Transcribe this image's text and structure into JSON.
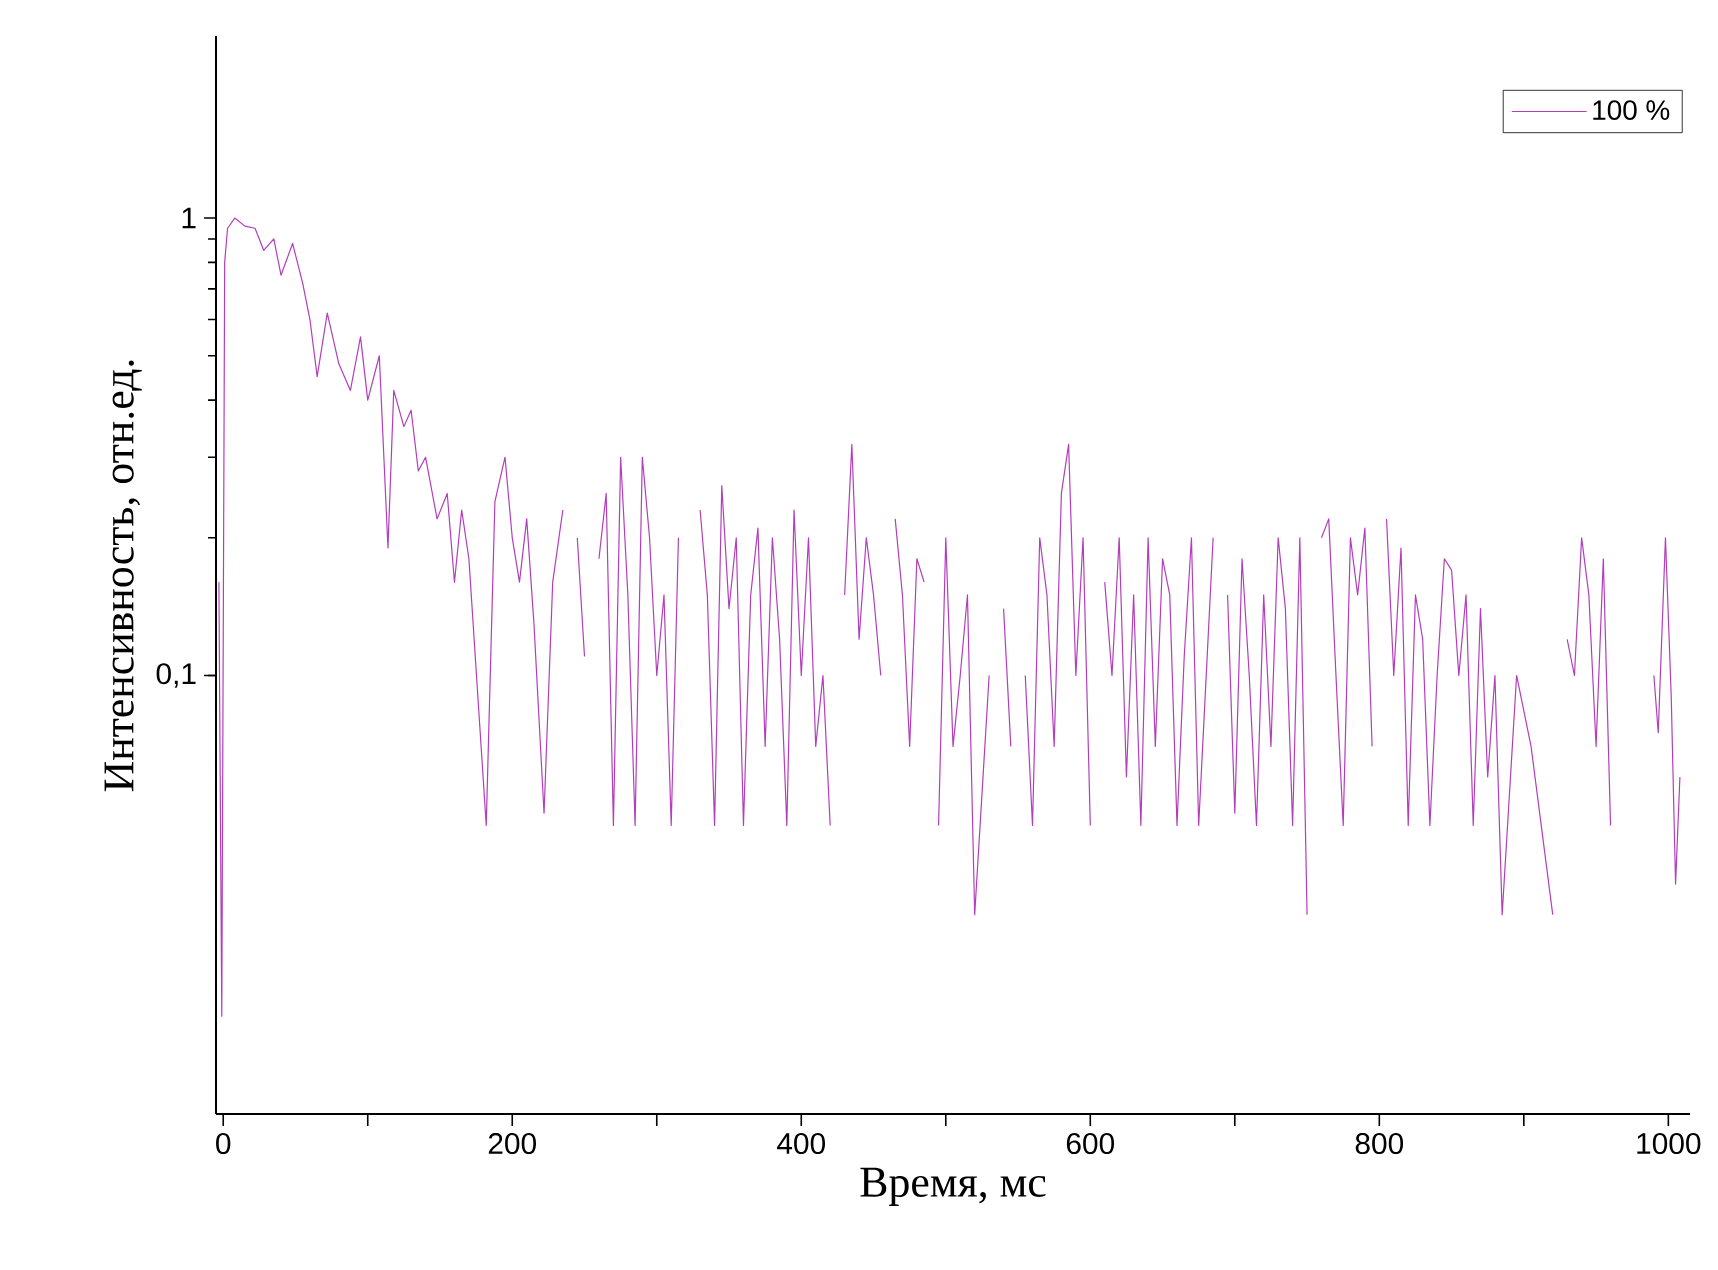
{
  "chart_data": {
    "type": "line",
    "xlabel": "Время, мс",
    "ylabel": "Интенсивность, отн.ед.",
    "log": "y",
    "xlim": [
      -5,
      1015
    ],
    "ylim": [
      0.011,
      2.5
    ],
    "xticks": [
      0,
      {
        "value": 100,
        "label": null
      },
      200,
      {
        "value": 300,
        "label": null
      },
      400,
      {
        "value": 500,
        "label": null
      },
      600,
      {
        "value": 700,
        "label": null
      },
      800,
      {
        "value": 900,
        "label": null
      },
      1000
    ],
    "yticks": [
      {
        "value": 0.1,
        "label": "0,1"
      },
      1
    ],
    "legend": "top right",
    "series": [
      {
        "name": "100 %",
        "color": "#b23ebc",
        "x": [
          -3,
          -1,
          1,
          3,
          8,
          15,
          22,
          28,
          35,
          40,
          48,
          55,
          60,
          65,
          72,
          80,
          88,
          95,
          100,
          108,
          114,
          118,
          125,
          130,
          135,
          140,
          148,
          155,
          160,
          165,
          170,
          182,
          188,
          195,
          200,
          205,
          210,
          215,
          222,
          228,
          235,
          240,
          245,
          250,
          255,
          260,
          265,
          270,
          275,
          280,
          285,
          290,
          295,
          300,
          305,
          310,
          315,
          320,
          325,
          330,
          335,
          340,
          345,
          350,
          355,
          360,
          365,
          370,
          375,
          380,
          385,
          390,
          395,
          400,
          405,
          410,
          415,
          420,
          425,
          430,
          435,
          440,
          445,
          450,
          455,
          460,
          465,
          470,
          475,
          480,
          485,
          490,
          495,
          500,
          505,
          510,
          515,
          520,
          530,
          535,
          540,
          545,
          550,
          555,
          560,
          565,
          570,
          575,
          580,
          585,
          590,
          595,
          600,
          605,
          610,
          615,
          620,
          625,
          630,
          635,
          640,
          645,
          650,
          655,
          660,
          665,
          670,
          675,
          685,
          690,
          695,
          700,
          705,
          710,
          715,
          720,
          725,
          730,
          735,
          740,
          745,
          750,
          755,
          760,
          765,
          770,
          775,
          780,
          785,
          790,
          795,
          800,
          805,
          810,
          815,
          820,
          825,
          830,
          835,
          840,
          845,
          850,
          855,
          860,
          865,
          870,
          875,
          880,
          885,
          895,
          905,
          920,
          925,
          930,
          935,
          940,
          945,
          950,
          955,
          960,
          965,
          970,
          985,
          990,
          993,
          998,
          1002,
          1005,
          1008
        ],
        "values": [
          0.16,
          0.018,
          0.8,
          0.95,
          1.0,
          0.96,
          0.95,
          0.85,
          0.9,
          0.75,
          0.88,
          0.72,
          0.6,
          0.45,
          0.62,
          0.48,
          0.42,
          0.55,
          0.4,
          0.5,
          0.19,
          0.42,
          0.35,
          0.38,
          0.28,
          0.3,
          0.22,
          0.25,
          0.16,
          0.23,
          0.18,
          0.047,
          0.24,
          0.3,
          0.2,
          0.16,
          0.22,
          0.13,
          0.05,
          0.16,
          0.23,
          null,
          0.2,
          0.11,
          null,
          0.18,
          0.25,
          0.047,
          0.3,
          0.15,
          0.047,
          0.3,
          0.2,
          0.1,
          0.15,
          0.047,
          0.2,
          null,
          null,
          0.23,
          0.15,
          0.047,
          0.26,
          0.14,
          0.2,
          0.047,
          0.15,
          0.21,
          0.07,
          0.2,
          0.12,
          0.047,
          0.23,
          0.1,
          0.2,
          0.07,
          0.1,
          0.047,
          null,
          0.15,
          0.32,
          0.12,
          0.2,
          0.15,
          0.1,
          null,
          0.22,
          0.15,
          0.07,
          0.18,
          0.16,
          null,
          0.047,
          0.2,
          0.07,
          0.1,
          0.15,
          0.03,
          0.1,
          null,
          0.14,
          0.07,
          null,
          0.1,
          0.047,
          0.2,
          0.15,
          0.07,
          0.25,
          0.32,
          0.1,
          0.2,
          0.047,
          null,
          0.16,
          0.1,
          0.2,
          0.06,
          0.15,
          0.047,
          0.2,
          0.07,
          0.18,
          0.15,
          0.047,
          0.11,
          0.2,
          0.047,
          0.2,
          null,
          0.15,
          0.05,
          0.18,
          0.1,
          0.047,
          0.15,
          0.07,
          0.2,
          0.14,
          0.047,
          0.2,
          0.03,
          null,
          0.2,
          0.22,
          0.1,
          0.047,
          0.2,
          0.15,
          0.21,
          0.07,
          null,
          0.22,
          0.1,
          0.19,
          0.047,
          0.15,
          0.12,
          0.047,
          0.1,
          0.18,
          0.17,
          0.1,
          0.15,
          0.047,
          0.14,
          0.06,
          0.1,
          0.03,
          0.1,
          0.07,
          0.03,
          null,
          0.12,
          0.1,
          0.2,
          0.15,
          0.07,
          0.18,
          0.047,
          null,
          null,
          null,
          0.1,
          0.075,
          0.2,
          0.09,
          0.035,
          0.06
        ]
      }
    ]
  }
}
